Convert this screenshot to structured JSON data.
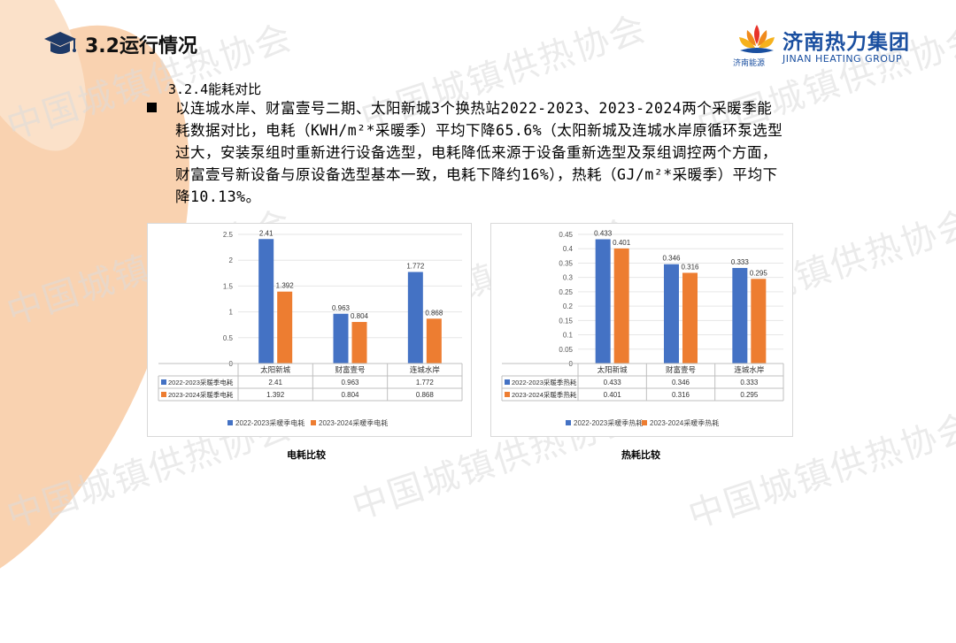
{
  "header": {
    "title": "3.2运行情况"
  },
  "logo": {
    "name": "济南热力集团",
    "english": "JINAN HEATING GROUP",
    "subbrand": "济南能源"
  },
  "watermark": "中国城镇供热协会",
  "section": {
    "heading": "3.2.4能耗对比",
    "bullet": "■",
    "paragraph": "以连城水岸、财富壹号二期、太阳新城3个换热站2022-2023、2023-2024两个采暖季能耗数据对比，电耗（KWH/m²*采暖季）平均下降65.6%（太阳新城及连城水岸原循环泵选型过大，安装泵组时重新进行设备选型，电耗降低来源于设备重新选型及泵组调控两个方面，财富壹号新设备与原设备选型基本一致，电耗下降约16%），热耗（GJ/m²*采暖季）平均下降10.13%。"
  },
  "colors": {
    "series1": "#4472c4",
    "series2": "#ed7d31",
    "petal": "#f7c7a0"
  },
  "chart_data": [
    {
      "type": "bar",
      "caption": "电耗比较",
      "categories": [
        "太阳新城",
        "财富壹号",
        "连城水岸"
      ],
      "series": [
        {
          "name": "2022-2023采暖季电耗",
          "values": [
            2.41,
            0.963,
            1.772
          ],
          "labels": [
            "2.41",
            "0.963",
            "1.772"
          ]
        },
        {
          "name": "2023-2024采暖季电耗",
          "values": [
            1.392,
            0.804,
            0.868
          ],
          "labels": [
            "1.392",
            "0.804",
            "0.868"
          ]
        }
      ],
      "yticks": [
        "0",
        "0.5",
        "1",
        "1.5",
        "2",
        "2.5"
      ],
      "ylim": [
        0,
        2.5
      ],
      "legend": "bottom",
      "data_table": true
    },
    {
      "type": "bar",
      "caption": "热耗比较",
      "categories": [
        "太阳新城",
        "财富壹号",
        "连城水岸"
      ],
      "series": [
        {
          "name": "2022-2023采暖季热耗",
          "values": [
            0.433,
            0.346,
            0.333
          ],
          "labels": [
            "0.433",
            "0.346",
            "0.333"
          ]
        },
        {
          "name": "2023-2024采暖季热耗",
          "values": [
            0.401,
            0.316,
            0.295
          ],
          "labels": [
            "0.401",
            "0.316",
            "0.295"
          ]
        }
      ],
      "yticks": [
        "0",
        "0.05",
        "0.1",
        "0.15",
        "0.2",
        "0.25",
        "0.3",
        "0.35",
        "0.4",
        "0.45"
      ],
      "ylim": [
        0,
        0.45
      ],
      "legend": "bottom",
      "data_table": true
    }
  ]
}
